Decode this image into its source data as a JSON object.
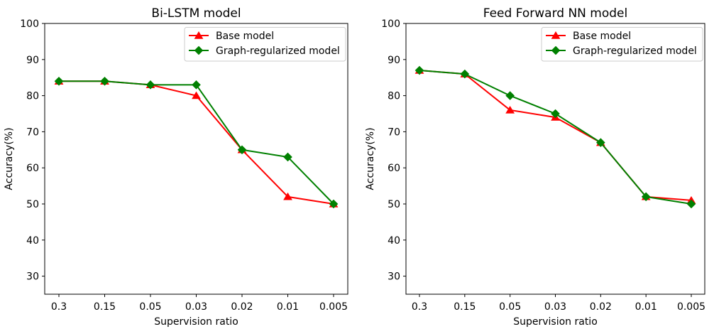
{
  "figure": {
    "background": "#ffffff",
    "border_color": "#000000",
    "legend_border_color": "#cccccc"
  },
  "chart_data": [
    {
      "type": "line",
      "title": "Bi-LSTM model",
      "xlabel": "Supervision ratio",
      "ylabel": "Accuracy(%)",
      "categories": [
        "0.3",
        "0.15",
        "0.05",
        "0.03",
        "0.02",
        "0.01",
        "0.005"
      ],
      "yticks": [
        30,
        40,
        50,
        60,
        70,
        80,
        90,
        100
      ],
      "ylim": [
        25,
        100
      ],
      "grid": false,
      "legend_position": "upper right",
      "series": [
        {
          "name": "Base model",
          "color": "#ff0000",
          "marker": "triangle",
          "values": [
            84,
            84,
            83,
            80,
            65,
            52,
            50
          ]
        },
        {
          "name": "Graph-regularized model",
          "color": "#008000",
          "marker": "diamond",
          "values": [
            84,
            84,
            83,
            83,
            65,
            63,
            50
          ]
        }
      ]
    },
    {
      "type": "line",
      "title": "Feed Forward NN model",
      "xlabel": "Supervision ratio",
      "ylabel": "Accuracy(%)",
      "categories": [
        "0.3",
        "0.15",
        "0.05",
        "0.03",
        "0.02",
        "0.01",
        "0.005"
      ],
      "yticks": [
        30,
        40,
        50,
        60,
        70,
        80,
        90,
        100
      ],
      "ylim": [
        25,
        100
      ],
      "grid": false,
      "legend_position": "upper right",
      "series": [
        {
          "name": "Base model",
          "color": "#ff0000",
          "marker": "triangle",
          "values": [
            87,
            86,
            76,
            74,
            67,
            52,
            51
          ]
        },
        {
          "name": "Graph-regularized model",
          "color": "#008000",
          "marker": "diamond",
          "values": [
            87,
            86,
            80,
            75,
            67,
            52,
            50
          ]
        }
      ]
    }
  ]
}
